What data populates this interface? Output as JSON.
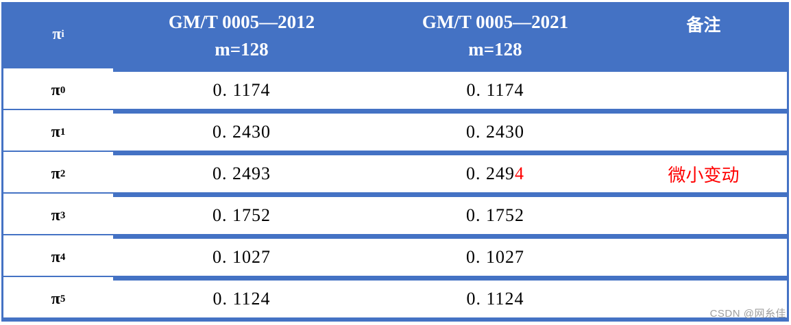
{
  "colors": {
    "table_blue": "#4472c4",
    "note_red": "#ff0000",
    "watermark_gray": "#9e9e9e"
  },
  "header": {
    "pi": {
      "base": "π",
      "sub": "i"
    },
    "col_2012": {
      "line1": "GM/T 0005—2012",
      "line2": "m=128"
    },
    "col_2021": {
      "line1": "GM/T 0005—2021",
      "line2": "m=128"
    },
    "note": "备注"
  },
  "rows": [
    {
      "pi": "π",
      "sub": "0",
      "v2012": "0. 1174",
      "v2021": "0. 1174",
      "v2021_red": "",
      "note": ""
    },
    {
      "pi": "π",
      "sub": "1",
      "v2012": "0. 2430",
      "v2021": "0. 2430",
      "v2021_red": "",
      "note": ""
    },
    {
      "pi": "π",
      "sub": "2",
      "v2012": "0. 2493",
      "v2021": "0. 249",
      "v2021_red": "4",
      "note": "微小变动"
    },
    {
      "pi": "π",
      "sub": "3",
      "v2012": "0. 1752",
      "v2021": "0. 1752",
      "v2021_red": "",
      "note": ""
    },
    {
      "pi": "π",
      "sub": "4",
      "v2012": "0. 1027",
      "v2021": "0. 1027",
      "v2021_red": "",
      "note": ""
    },
    {
      "pi": "π",
      "sub": "5",
      "v2012": "0. 1124",
      "v2021": "0. 1124",
      "v2021_red": "",
      "note": ""
    }
  ],
  "watermark": "CSDN @网糸佳"
}
